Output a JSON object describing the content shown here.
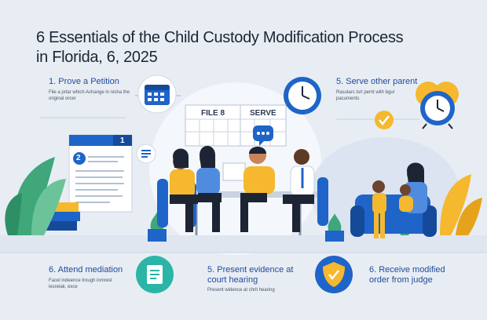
{
  "title": {
    "line1": "6 Essentials of the Child Custody Modification Process",
    "line2": "in Florida, 6, 2025"
  },
  "steps": {
    "prove": {
      "label": "1. Prove a Petition",
      "desc": "File a prtar which Achange in nisha the original orcer"
    },
    "serve_parent": {
      "label": "5. Serve other parent",
      "desc": "Rasulars tsrt pemt with bgul pacuments"
    },
    "mediation": {
      "label": "6. Attend mediation",
      "desc": "Facel indeence trough inmrest iesrelak, exce"
    },
    "evidence": {
      "label_line1": "5. Present evidence at",
      "label_line2": "court hearing",
      "desc": "Present widence at chrit hearing"
    },
    "receive": {
      "label_line1": "6. Receive modified",
      "label_line2": "order from judge"
    }
  },
  "board": {
    "file": "FILE 8",
    "serve": "SERVE"
  },
  "document": {
    "tab_number": "1",
    "badge_number": "2"
  },
  "icons": [
    "calendar-icon",
    "clock-icon",
    "alarm-clock-icon",
    "checkmark-icon",
    "chat-bubble-icon",
    "document-icon",
    "shield-check-icon"
  ],
  "colors": {
    "blue": "#1f64c8",
    "yellow": "#f5b82e",
    "teal": "#2bb5a7",
    "title": "#1d2433"
  }
}
